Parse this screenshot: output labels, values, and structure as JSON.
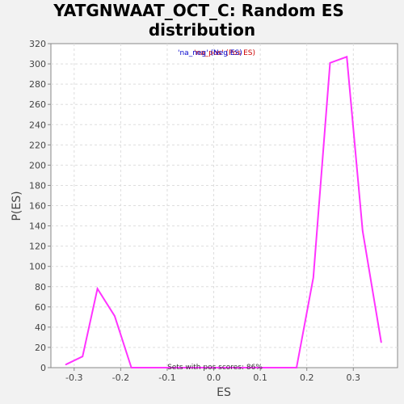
{
  "chart_data": {
    "type": "line",
    "title_line1": "YATGNWAAT_OCT_C: Random ES",
    "title_line2": "distribution",
    "xlabel": "ES",
    "ylabel": "P(ES)",
    "xlim": [
      -0.35,
      0.395
    ],
    "ylim": [
      0,
      320
    ],
    "x_ticks": [
      "-0.3",
      "-0.2",
      "-0.1",
      "0.0",
      "0.1",
      "0.2",
      "0.3"
    ],
    "y_ticks": [
      "0",
      "20",
      "40",
      "60",
      "80",
      "100",
      "120",
      "140",
      "160",
      "180",
      "200",
      "220",
      "240",
      "260",
      "280",
      "300",
      "320"
    ],
    "grid": true,
    "legend": {
      "placement": "top-center",
      "neg_label": "'na_neg' (Neg ES)",
      "neg_color": "#0000cc",
      "pos_label": "'na_pos' (Pos ES)",
      "pos_color": "#cc0000"
    },
    "annotation": "Sets with pos scores: 86%",
    "series": [
      {
        "color": "#ff33ff",
        "x": [
          -0.318,
          -0.282,
          -0.25,
          -0.213,
          -0.177,
          0.178,
          0.214,
          0.25,
          0.286,
          0.32,
          0.36
        ],
        "y": [
          3,
          11,
          78,
          51,
          0,
          0,
          89,
          301,
          307,
          135,
          25
        ]
      }
    ]
  }
}
